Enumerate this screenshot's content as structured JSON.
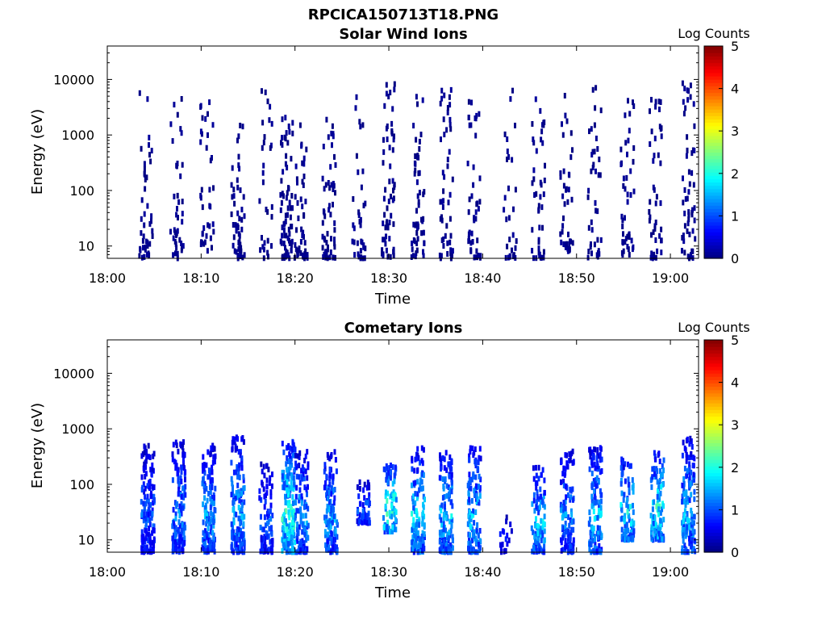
{
  "figure": {
    "title": "RPCICA150713T18.PNG"
  },
  "colormap": [
    "#00007f",
    "#0000ff",
    "#007fff",
    "#00ffff",
    "#7fff7f",
    "#ffff00",
    "#ff7f00",
    "#ff0000",
    "#7f0000"
  ],
  "chart_data": [
    {
      "type": "heatmap",
      "title": "Solar Wind Ions",
      "xlabel": "Time",
      "ylabel": "Energy (eV)",
      "x_ticks": [
        "18:00",
        "18:10",
        "18:20",
        "18:30",
        "18:40",
        "18:50",
        "19:00"
      ],
      "x_tick_minutes": [
        0,
        10,
        20,
        30,
        40,
        50,
        60
      ],
      "xlim_minutes": [
        0,
        63
      ],
      "y_scale": "log",
      "y_ticks": [
        "10",
        "100",
        "1000",
        "10000"
      ],
      "y_tick_values": [
        10,
        100,
        1000,
        10000
      ],
      "ylim": [
        6,
        40000
      ],
      "colorbar": {
        "label": "Log Counts",
        "ticks": [
          "0",
          "1",
          "2",
          "3",
          "4",
          "5"
        ],
        "range": [
          0,
          5
        ]
      },
      "bursts": [
        {
          "t": 4.0,
          "emin": 6,
          "emax": 7000,
          "n": 45,
          "seed": 11
        },
        {
          "t": 7.3,
          "emin": 6,
          "emax": 5000,
          "n": 40,
          "seed": 12
        },
        {
          "t": 10.5,
          "emin": 8,
          "emax": 4000,
          "n": 38,
          "seed": 13
        },
        {
          "t": 13.8,
          "emin": 6,
          "emax": 3500,
          "n": 50,
          "seed": 14
        },
        {
          "t": 16.8,
          "emin": 6,
          "emax": 7000,
          "n": 30,
          "seed": 15
        },
        {
          "t": 19.0,
          "emin": 6,
          "emax": 2500,
          "n": 70,
          "seed": 16
        },
        {
          "t": 20.5,
          "emin": 6,
          "emax": 3000,
          "n": 45,
          "seed": 17
        },
        {
          "t": 23.5,
          "emin": 6,
          "emax": 2200,
          "n": 55,
          "seed": 18
        },
        {
          "t": 26.7,
          "emin": 6,
          "emax": 5000,
          "n": 35,
          "seed": 19
        },
        {
          "t": 29.8,
          "emin": 6,
          "emax": 10000,
          "n": 60,
          "seed": 20
        },
        {
          "t": 33.0,
          "emin": 6,
          "emax": 8000,
          "n": 55,
          "seed": 21
        },
        {
          "t": 36.0,
          "emin": 6,
          "emax": 11000,
          "n": 50,
          "seed": 22
        },
        {
          "t": 39.0,
          "emin": 6,
          "emax": 4000,
          "n": 45,
          "seed": 23
        },
        {
          "t": 42.8,
          "emin": 6,
          "emax": 10000,
          "n": 30,
          "seed": 24
        },
        {
          "t": 45.8,
          "emin": 6,
          "emax": 8000,
          "n": 45,
          "seed": 25
        },
        {
          "t": 48.8,
          "emin": 8,
          "emax": 6000,
          "n": 40,
          "seed": 26
        },
        {
          "t": 51.8,
          "emin": 6,
          "emax": 8000,
          "n": 40,
          "seed": 27
        },
        {
          "t": 55.3,
          "emin": 6,
          "emax": 6000,
          "n": 45,
          "seed": 28
        },
        {
          "t": 58.3,
          "emin": 6,
          "emax": 6000,
          "n": 45,
          "seed": 29
        },
        {
          "t": 61.8,
          "emin": 6,
          "emax": 11000,
          "n": 55,
          "seed": 30
        }
      ]
    },
    {
      "type": "heatmap",
      "title": "Cometary Ions",
      "xlabel": "Time",
      "ylabel": "Energy (eV)",
      "x_ticks": [
        "18:00",
        "18:10",
        "18:20",
        "18:30",
        "18:40",
        "18:50",
        "19:00"
      ],
      "x_tick_minutes": [
        0,
        10,
        20,
        30,
        40,
        50,
        60
      ],
      "xlim_minutes": [
        0,
        63
      ],
      "y_scale": "log",
      "y_ticks": [
        "10",
        "100",
        "1000",
        "10000"
      ],
      "y_tick_values": [
        10,
        100,
        1000,
        10000
      ],
      "ylim": [
        6,
        40000
      ],
      "colorbar": {
        "label": "Log Counts",
        "ticks": [
          "0",
          "1",
          "2",
          "3",
          "4",
          "5"
        ],
        "range": [
          0,
          5
        ]
      },
      "bursts": [
        {
          "t": 4.2,
          "emin": 6,
          "emax": 500,
          "n": 150,
          "seed": 41,
          "peak": 1.2
        },
        {
          "t": 7.5,
          "emin": 6,
          "emax": 600,
          "n": 140,
          "seed": 42,
          "peak": 1.4
        },
        {
          "t": 10.7,
          "emin": 6,
          "emax": 500,
          "n": 150,
          "seed": 43,
          "peak": 1.6
        },
        {
          "t": 13.8,
          "emin": 6,
          "emax": 700,
          "n": 160,
          "seed": 44,
          "peak": 1.6
        },
        {
          "t": 16.8,
          "emin": 6,
          "emax": 250,
          "n": 90,
          "seed": 45,
          "peak": 1.2
        },
        {
          "t": 19.2,
          "emin": 6,
          "emax": 600,
          "n": 190,
          "seed": 46,
          "peak": 2.3
        },
        {
          "t": 20.6,
          "emin": 6,
          "emax": 400,
          "n": 110,
          "seed": 47,
          "peak": 1.6
        },
        {
          "t": 23.7,
          "emin": 6,
          "emax": 400,
          "n": 140,
          "seed": 48,
          "peak": 1.6
        },
        {
          "t": 27.2,
          "emin": 20,
          "emax": 120,
          "n": 60,
          "seed": 49,
          "peak": 1.2
        },
        {
          "t": 30.0,
          "emin": 14,
          "emax": 220,
          "n": 90,
          "seed": 50,
          "peak": 2.4
        },
        {
          "t": 33.0,
          "emin": 6,
          "emax": 450,
          "n": 140,
          "seed": 51,
          "peak": 1.9
        },
        {
          "t": 36.0,
          "emin": 6,
          "emax": 420,
          "n": 140,
          "seed": 52,
          "peak": 1.8
        },
        {
          "t": 39.0,
          "emin": 6,
          "emax": 450,
          "n": 130,
          "seed": 53,
          "peak": 1.8
        },
        {
          "t": 42.3,
          "emin": 6,
          "emax": 30,
          "n": 18,
          "seed": 54,
          "peak": 0.8
        },
        {
          "t": 45.8,
          "emin": 6,
          "emax": 200,
          "n": 100,
          "seed": 55,
          "peak": 1.9
        },
        {
          "t": 48.9,
          "emin": 6,
          "emax": 400,
          "n": 120,
          "seed": 56,
          "peak": 1.5
        },
        {
          "t": 51.9,
          "emin": 6,
          "emax": 500,
          "n": 130,
          "seed": 57,
          "peak": 1.8
        },
        {
          "t": 55.3,
          "emin": 10,
          "emax": 300,
          "n": 100,
          "seed": 58,
          "peak": 2.0
        },
        {
          "t": 58.5,
          "emin": 10,
          "emax": 400,
          "n": 130,
          "seed": 59,
          "peak": 2.2
        },
        {
          "t": 61.8,
          "emin": 6,
          "emax": 700,
          "n": 140,
          "seed": 60,
          "peak": 1.7
        }
      ]
    }
  ]
}
